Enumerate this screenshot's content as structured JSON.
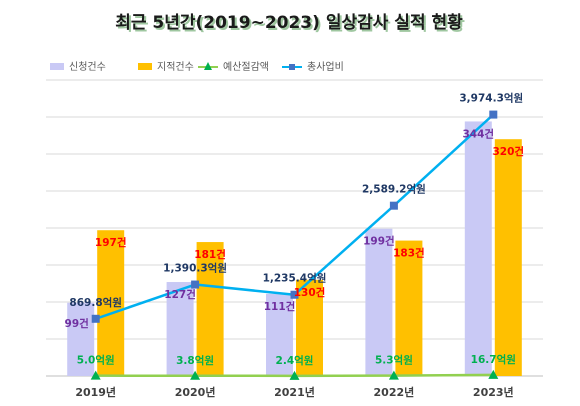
{
  "chart_data": {
    "type": "bar",
    "title": "최근 5년간(2019~2023) 일상감사 실적 현황",
    "categories": [
      "2019년",
      "2020년",
      "2021년",
      "2022년",
      "2023년"
    ],
    "series": [
      {
        "name": "신청건수",
        "kind": "bar",
        "axis": "count",
        "color": "#c9c9f5",
        "label_color": "#7030a0",
        "values": [
          99,
          127,
          111,
          199,
          344
        ],
        "labels": [
          "99건",
          "127건",
          "111건",
          "199건",
          "344건"
        ]
      },
      {
        "name": "지적건수",
        "kind": "bar",
        "axis": "count",
        "color": "#ffc000",
        "label_color": "#ff0000",
        "values": [
          197,
          181,
          130,
          183,
          320
        ],
        "labels": [
          "197건",
          "181건",
          "130건",
          "183건",
          "320건"
        ]
      },
      {
        "name": "예산절감액",
        "kind": "line",
        "axis": "amount",
        "marker": "triangle",
        "color": "#92d050",
        "marker_color": "#00b050",
        "label_color": "#00b050",
        "values": [
          5.0,
          3.8,
          2.4,
          5.3,
          16.7
        ],
        "labels": [
          "5.0억원",
          "3.8억원",
          "2.4억원",
          "5.3억원",
          "16.7억원"
        ]
      },
      {
        "name": "총사업비",
        "kind": "line",
        "axis": "amount",
        "marker": "square",
        "color": "#00b0f0",
        "marker_color": "#4472c4",
        "label_color": "#1f3864",
        "values": [
          869.8,
          1390.3,
          1235.4,
          2589.2,
          3974.3
        ],
        "labels": [
          "869.8억원",
          "1,390.3억원",
          "1,235.4억원",
          "2,589.2억원",
          "3,974.3억원"
        ]
      }
    ],
    "ylim_count": [
      0,
      400
    ],
    "ylim_amount": [
      0,
      4500
    ],
    "grid": true,
    "legend_position": "top-left",
    "colors": {
      "title_shadow": "#9fc7a0",
      "grid": "#d9d9d9"
    }
  }
}
